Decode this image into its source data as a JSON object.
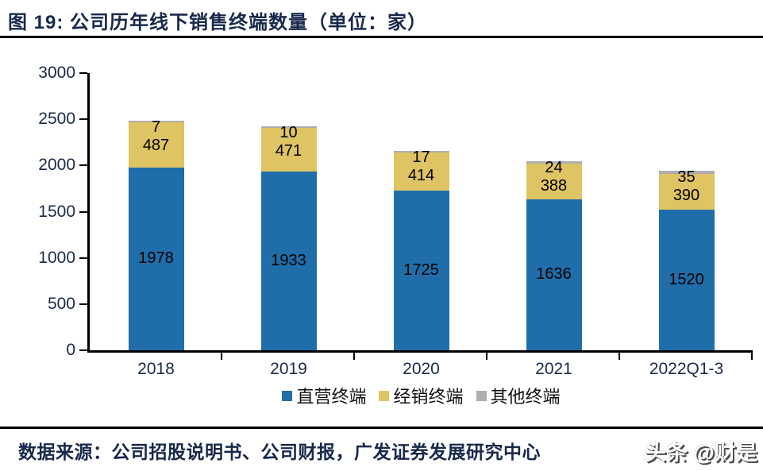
{
  "header": {
    "title": "图 19: 公司历年线下销售终端数量（单位：家）"
  },
  "chart_data": {
    "type": "bar",
    "stacked": true,
    "title": "公司历年线下销售终端数量",
    "unit": "家",
    "categories": [
      "2018",
      "2019",
      "2020",
      "2021",
      "2022Q1-3"
    ],
    "series": [
      {
        "name": "直营终端",
        "color": "#1F6DA9",
        "values": [
          1978,
          1933,
          1725,
          1636,
          1520
        ]
      },
      {
        "name": "经销终端",
        "color": "#DFC464",
        "values": [
          487,
          471,
          414,
          388,
          390
        ]
      },
      {
        "name": "其他终端",
        "color": "#AEAEAE",
        "values": [
          7,
          10,
          17,
          24,
          35
        ]
      }
    ],
    "ylim": [
      0,
      3000
    ],
    "yticks": [
      0,
      500,
      1000,
      1500,
      2000,
      2500,
      3000
    ],
    "legend_position": "bottom",
    "grid": false
  },
  "footer": {
    "source": "数据来源：公司招股说明书、公司财报，广发证券发展研究中心",
    "watermark": "头条 @财是"
  },
  "colors": {
    "accent_navy": "#18294B",
    "bar_blue": "#1F6DA9",
    "bar_yellow": "#DFC464",
    "bar_gray": "#AEAEAE"
  }
}
